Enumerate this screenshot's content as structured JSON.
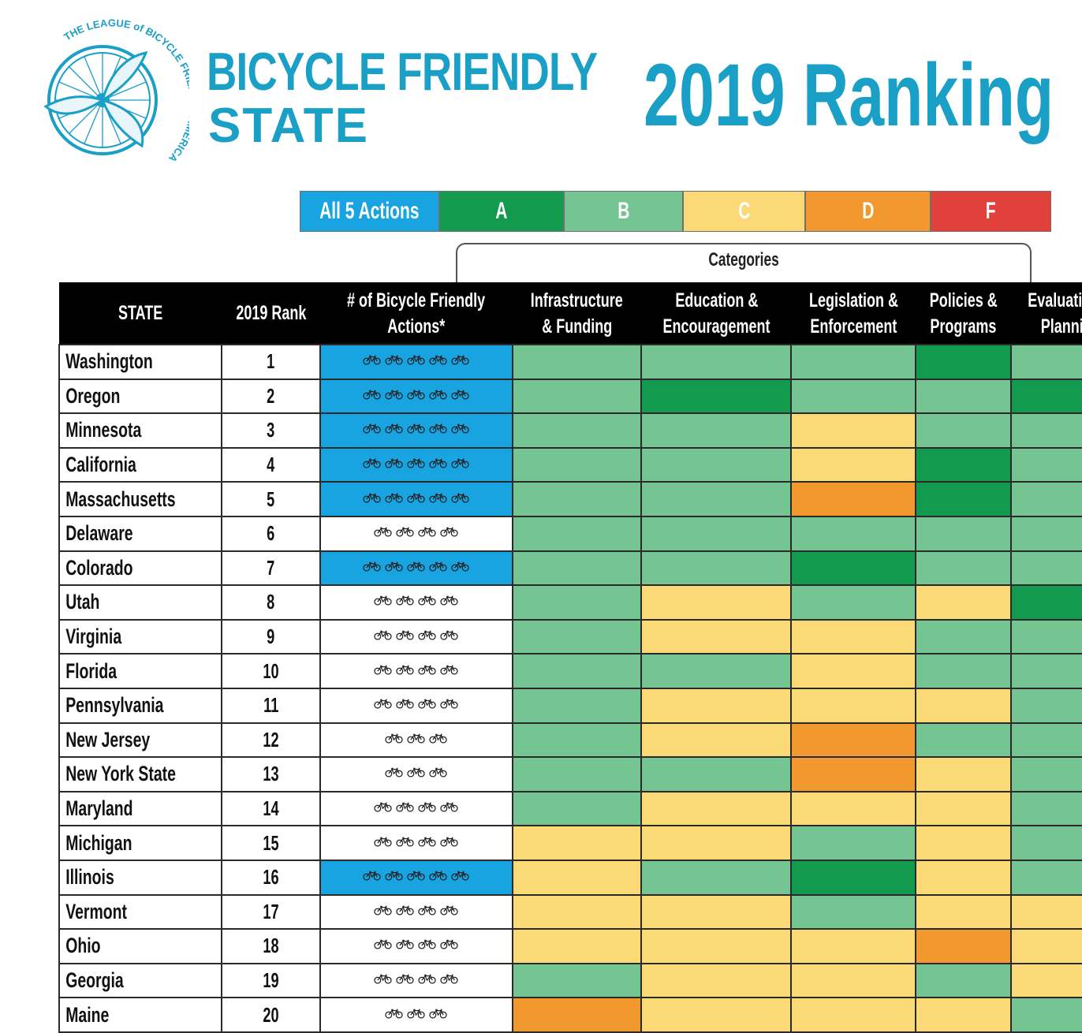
{
  "header": {
    "logo_text": "THE LEAGUE of BICYCLE FRIENDLY AMERICA",
    "brand_line1": "BICYCLE FRIENDLY",
    "brand_line2": "STATE",
    "ranking_title": "2019 Ranking"
  },
  "legend": [
    {
      "label": "All 5 Actions",
      "color": "#18a4e0"
    },
    {
      "label": "A",
      "color": "#129a4e"
    },
    {
      "label": "B",
      "color": "#74c592"
    },
    {
      "label": "C",
      "color": "#fbd977"
    },
    {
      "label": "D",
      "color": "#f1992e"
    },
    {
      "label": "F",
      "color": "#e2403a"
    }
  ],
  "categories_label": "Categories",
  "columns": {
    "state": "STATE",
    "rank": "2019 Rank",
    "actions_line1": "# of Bicycle Friendly",
    "actions_line2": "Actions*",
    "cat1_line1": "Infrastructure",
    "cat1_line2": "& Funding",
    "cat2_line1": "Education &",
    "cat2_line2": "Encouragement",
    "cat3_line1": "Legislation &",
    "cat3_line2": "Enforcement",
    "cat4_line1": "Policies &",
    "cat4_line2": "Programs",
    "cat5_line1": "Evaluation &",
    "cat5_line2": "Planning"
  },
  "chart_data": {
    "type": "table",
    "title": "2019 Ranking",
    "grade_colors": {
      "A": "#129a4e",
      "B": "#74c592",
      "C": "#fbd977",
      "D": "#f1992e",
      "F": "#e2403a"
    },
    "category_names": [
      "Infrastructure & Funding",
      "Education & Encouragement",
      "Legislation & Enforcement",
      "Policies & Programs",
      "Evaluation & Planning"
    ],
    "rows": [
      {
        "state": "Washington",
        "rank": "1",
        "actions": 5,
        "grades": [
          "B",
          "B",
          "B",
          "A",
          "B"
        ]
      },
      {
        "state": "Oregon",
        "rank": "2",
        "actions": 5,
        "grades": [
          "B",
          "A",
          "B",
          "B",
          "A"
        ]
      },
      {
        "state": "Minnesota",
        "rank": "3",
        "actions": 5,
        "grades": [
          "B",
          "B",
          "C",
          "B",
          "B"
        ]
      },
      {
        "state": "California",
        "rank": "4",
        "actions": 5,
        "grades": [
          "B",
          "B",
          "C",
          "A",
          "B"
        ]
      },
      {
        "state": "Massachusetts",
        "rank": "5",
        "actions": 5,
        "grades": [
          "B",
          "B",
          "D",
          "A",
          "B"
        ]
      },
      {
        "state": "Delaware",
        "rank": "6",
        "actions": 4,
        "grades": [
          "B",
          "B",
          "B",
          "B",
          "B"
        ]
      },
      {
        "state": "Colorado",
        "rank": "7",
        "actions": 5,
        "grades": [
          "B",
          "B",
          "A",
          "B",
          "B"
        ]
      },
      {
        "state": "Utah",
        "rank": "8",
        "actions": 4,
        "grades": [
          "B",
          "C",
          "B",
          "C",
          "A"
        ]
      },
      {
        "state": "Virginia",
        "rank": "9",
        "actions": 4,
        "grades": [
          "B",
          "C",
          "C",
          "B",
          "B"
        ]
      },
      {
        "state": "Florida",
        "rank": "10",
        "actions": 4,
        "grades": [
          "B",
          "B",
          "C",
          "B",
          "B"
        ]
      },
      {
        "state": "Pennsylvania",
        "rank": "11",
        "actions": 4,
        "grades": [
          "B",
          "C",
          "C",
          "C",
          "B"
        ]
      },
      {
        "state": "New Jersey",
        "rank": "12",
        "actions": 3,
        "grades": [
          "B",
          "C",
          "D",
          "B",
          "B"
        ]
      },
      {
        "state": "New York State",
        "rank": "13",
        "actions": 3,
        "grades": [
          "B",
          "B",
          "D",
          "C",
          "B"
        ]
      },
      {
        "state": "Maryland",
        "rank": "14",
        "actions": 4,
        "grades": [
          "B",
          "C",
          "C",
          "C",
          "B"
        ]
      },
      {
        "state": "Michigan",
        "rank": "15",
        "actions": 4,
        "grades": [
          "C",
          "C",
          "B",
          "C",
          "B"
        ]
      },
      {
        "state": "Illinois",
        "rank": "16",
        "actions": 5,
        "grades": [
          "C",
          "B",
          "A",
          "C",
          "B"
        ]
      },
      {
        "state": "Vermont",
        "rank": "17",
        "actions": 4,
        "grades": [
          "C",
          "C",
          "B",
          "C",
          "C"
        ]
      },
      {
        "state": "Ohio",
        "rank": "18",
        "actions": 4,
        "grades": [
          "C",
          "C",
          "C",
          "D",
          "C"
        ]
      },
      {
        "state": "Georgia",
        "rank": "19",
        "actions": 4,
        "grades": [
          "B",
          "C",
          "C",
          "B",
          "C"
        ]
      },
      {
        "state": "Maine",
        "rank": "20",
        "actions": 3,
        "grades": [
          "D",
          "C",
          "C",
          "C",
          "B"
        ]
      }
    ]
  }
}
